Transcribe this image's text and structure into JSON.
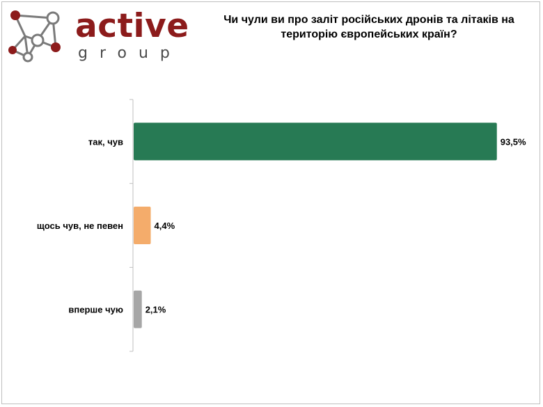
{
  "logo": {
    "word": "active",
    "sub": "group"
  },
  "colors": {
    "brand": "#8c1b1b",
    "bar_yes": "#277a54",
    "bar_unsure": "#f4ac6b",
    "bar_first": "#a6a6a6",
    "axis": "#bfbfbf"
  },
  "chart_data": {
    "type": "bar",
    "orientation": "horizontal",
    "title": "Чи чули ви про заліт російських дронів та літаків на територію європейських країн?",
    "categories": [
      "так, чув",
      "щось чув, не певен",
      "вперше чую"
    ],
    "values": [
      93.5,
      4.4,
      2.1
    ],
    "value_labels": [
      "93,5%",
      "4,4%",
      "2,1%"
    ],
    "xlim": [
      0,
      100
    ],
    "grid": false,
    "legend": "none"
  }
}
